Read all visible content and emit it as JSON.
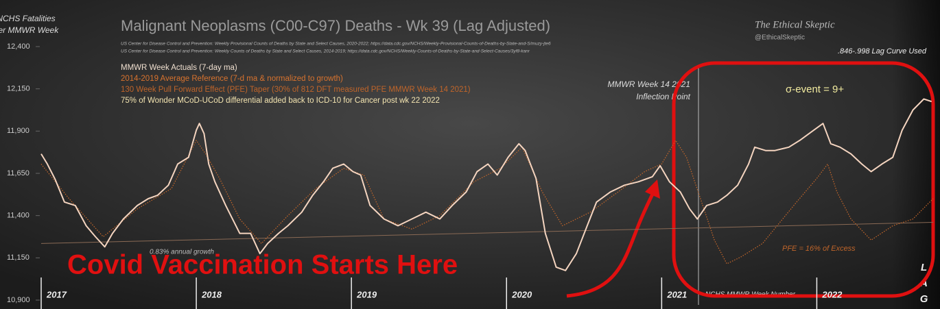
{
  "chart_data": {
    "type": "line",
    "title": "Malignant Neoplasms (C00-C97) Deaths - Wk 39 (Lag Adjusted)",
    "y_label": [
      "NCHS Fatalities",
      "per MMWR Week"
    ],
    "x_label": "NCHS MMWR Week Number",
    "sources": [
      "US Center for Disease Control and Prevention: Weekly  Provisional Counts of Deaths by State and Select Causes, 2020-2022; https://data.cdc.gov/NCHS/Weekly-Provisional-Counts-of-Deaths-by-State-and-S/muzy-jte6",
      "US Center for Disease Control and Prevention: Weekly  Counts of Deaths by State and Select Causes, 2014-2019; https://data.cdc.gov/NCHS/Weekly-Counts-of-Deaths-by-State-and-Select-Causes/3yf8-kanr"
    ],
    "brand": [
      "The Ethical Skeptic",
      "@EthicalSkeptic"
    ],
    "lag_note": ".846-.998 Lag Curve Used",
    "notes": [
      {
        "text": "130 Week Pull Forward Effect (PFE) Taper (30% of 812 DFT measured PFE MMWR Week 14 2021)",
        "color": "#c0652a"
      },
      {
        "text": "75% of Wonder MCoD-UCoD  differential added back to  ICD-10 for Cancer post wk 22 2022",
        "color": "#f3e4b0"
      }
    ],
    "inflection": [
      "MMWR Week 14  2021",
      "Inflection Point"
    ],
    "sigma": "σ-event  = 9+",
    "callout": "Covid Vaccination Starts Here",
    "pfe_label": "PFE = 16% of Excess",
    "lag": "LAG",
    "trend": {
      "label": "0.83% annual growth",
      "x": [
        2017,
        2022.75
      ],
      "values": [
        11235,
        11360
      ]
    },
    "xlim": [
      2017,
      2022.75
    ],
    "xticks": [
      2017,
      2018,
      2019,
      2020,
      2021,
      2022
    ],
    "ylim": [
      10900,
      12400
    ],
    "yticks": [
      {
        "value": 10900,
        "label": "10,900"
      },
      {
        "value": 11150,
        "label": "11,150"
      },
      {
        "value": 11400,
        "label": "11,400"
      },
      {
        "value": 11650,
        "label": "11,650"
      },
      {
        "value": 11900,
        "label": "11,900"
      },
      {
        "value": 12150,
        "label": "12,150"
      },
      {
        "value": 12400,
        "label": "12,400"
      }
    ],
    "series": [
      {
        "name": "MMWR Week Actuals (7-day ma)",
        "color": "#f5d5c0",
        "dash": false,
        "x": [
          2017.0,
          2017.04,
          2017.09,
          2017.15,
          2017.22,
          2017.29,
          2017.35,
          2017.41,
          2017.46,
          2017.53,
          2017.62,
          2017.69,
          2017.75,
          2017.82,
          2017.88,
          2017.95,
          2018.0,
          2018.02,
          2018.05,
          2018.08,
          2018.12,
          2018.19,
          2018.28,
          2018.35,
          2018.41,
          2018.46,
          2018.53,
          2018.59,
          2018.68,
          2018.75,
          2018.82,
          2018.88,
          2018.95,
          2019.01,
          2019.06,
          2019.12,
          2019.21,
          2019.3,
          2019.39,
          2019.48,
          2019.57,
          2019.65,
          2019.74,
          2019.81,
          2019.88,
          2019.94,
          2020.01,
          2020.08,
          2020.12,
          2020.19,
          2020.25,
          2020.32,
          2020.38,
          2020.45,
          2020.52,
          2020.58,
          2020.67,
          2020.76,
          2020.85,
          2020.94,
          2020.99,
          2021.05,
          2021.12,
          2021.18,
          2021.23,
          2021.29,
          2021.36,
          2021.42,
          2021.49,
          2021.56,
          2021.6,
          2021.67,
          2021.73,
          2021.82,
          2021.89,
          2021.98,
          2022.04,
          2022.09,
          2022.15,
          2022.22,
          2022.29,
          2022.35,
          2022.42,
          2022.49,
          2022.55,
          2022.62,
          2022.69,
          2022.74
        ],
        "values": [
          11765,
          11705,
          11615,
          11480,
          11460,
          11340,
          11275,
          11215,
          11295,
          11380,
          11460,
          11500,
          11520,
          11580,
          11705,
          11745,
          11905,
          11945,
          11885,
          11705,
          11600,
          11460,
          11295,
          11295,
          11175,
          11235,
          11295,
          11340,
          11420,
          11520,
          11600,
          11680,
          11705,
          11660,
          11640,
          11460,
          11380,
          11340,
          11380,
          11420,
          11380,
          11460,
          11540,
          11660,
          11705,
          11640,
          11745,
          11825,
          11785,
          11620,
          11295,
          11095,
          11075,
          11175,
          11340,
          11480,
          11540,
          11580,
          11600,
          11630,
          11695,
          11600,
          11540,
          11440,
          11380,
          11460,
          11480,
          11520,
          11580,
          11705,
          11805,
          11785,
          11785,
          11805,
          11845,
          11905,
          11945,
          11825,
          11805,
          11765,
          11705,
          11660,
          11705,
          11745,
          11905,
          12025,
          12090,
          12075
        ]
      },
      {
        "name": "2014-2019 Average Reference  (7-d ma & normalized to growth)",
        "color": "#c0652a",
        "dash": true,
        "x": [
          2017.0,
          2017.18,
          2017.4,
          2017.62,
          2017.84,
          2018.0,
          2018.06,
          2018.15,
          2018.28,
          2018.42,
          2018.59,
          2018.77,
          2018.95,
          2019.08,
          2019.21,
          2019.39,
          2019.57,
          2019.79,
          2019.96,
          2020.1,
          2020.23,
          2020.36,
          2020.54,
          2020.72,
          2020.89,
          2021.0,
          2021.09,
          2021.16,
          2021.25,
          2021.34,
          2021.42,
          2021.51,
          2021.65,
          2021.78,
          2021.87,
          2022.0,
          2022.07,
          2022.13,
          2022.22,
          2022.35,
          2022.49,
          2022.62,
          2022.75
        ],
        "values": [
          11705,
          11500,
          11275,
          11440,
          11560,
          11845,
          11765,
          11620,
          11380,
          11235,
          11400,
          11560,
          11680,
          11640,
          11380,
          11320,
          11400,
          11600,
          11680,
          11805,
          11540,
          11340,
          11420,
          11540,
          11660,
          11705,
          11845,
          11745,
          11500,
          11255,
          11115,
          11155,
          11235,
          11380,
          11480,
          11620,
          11705,
          11540,
          11380,
          11255,
          11340,
          11380,
          11500
        ]
      }
    ]
  }
}
